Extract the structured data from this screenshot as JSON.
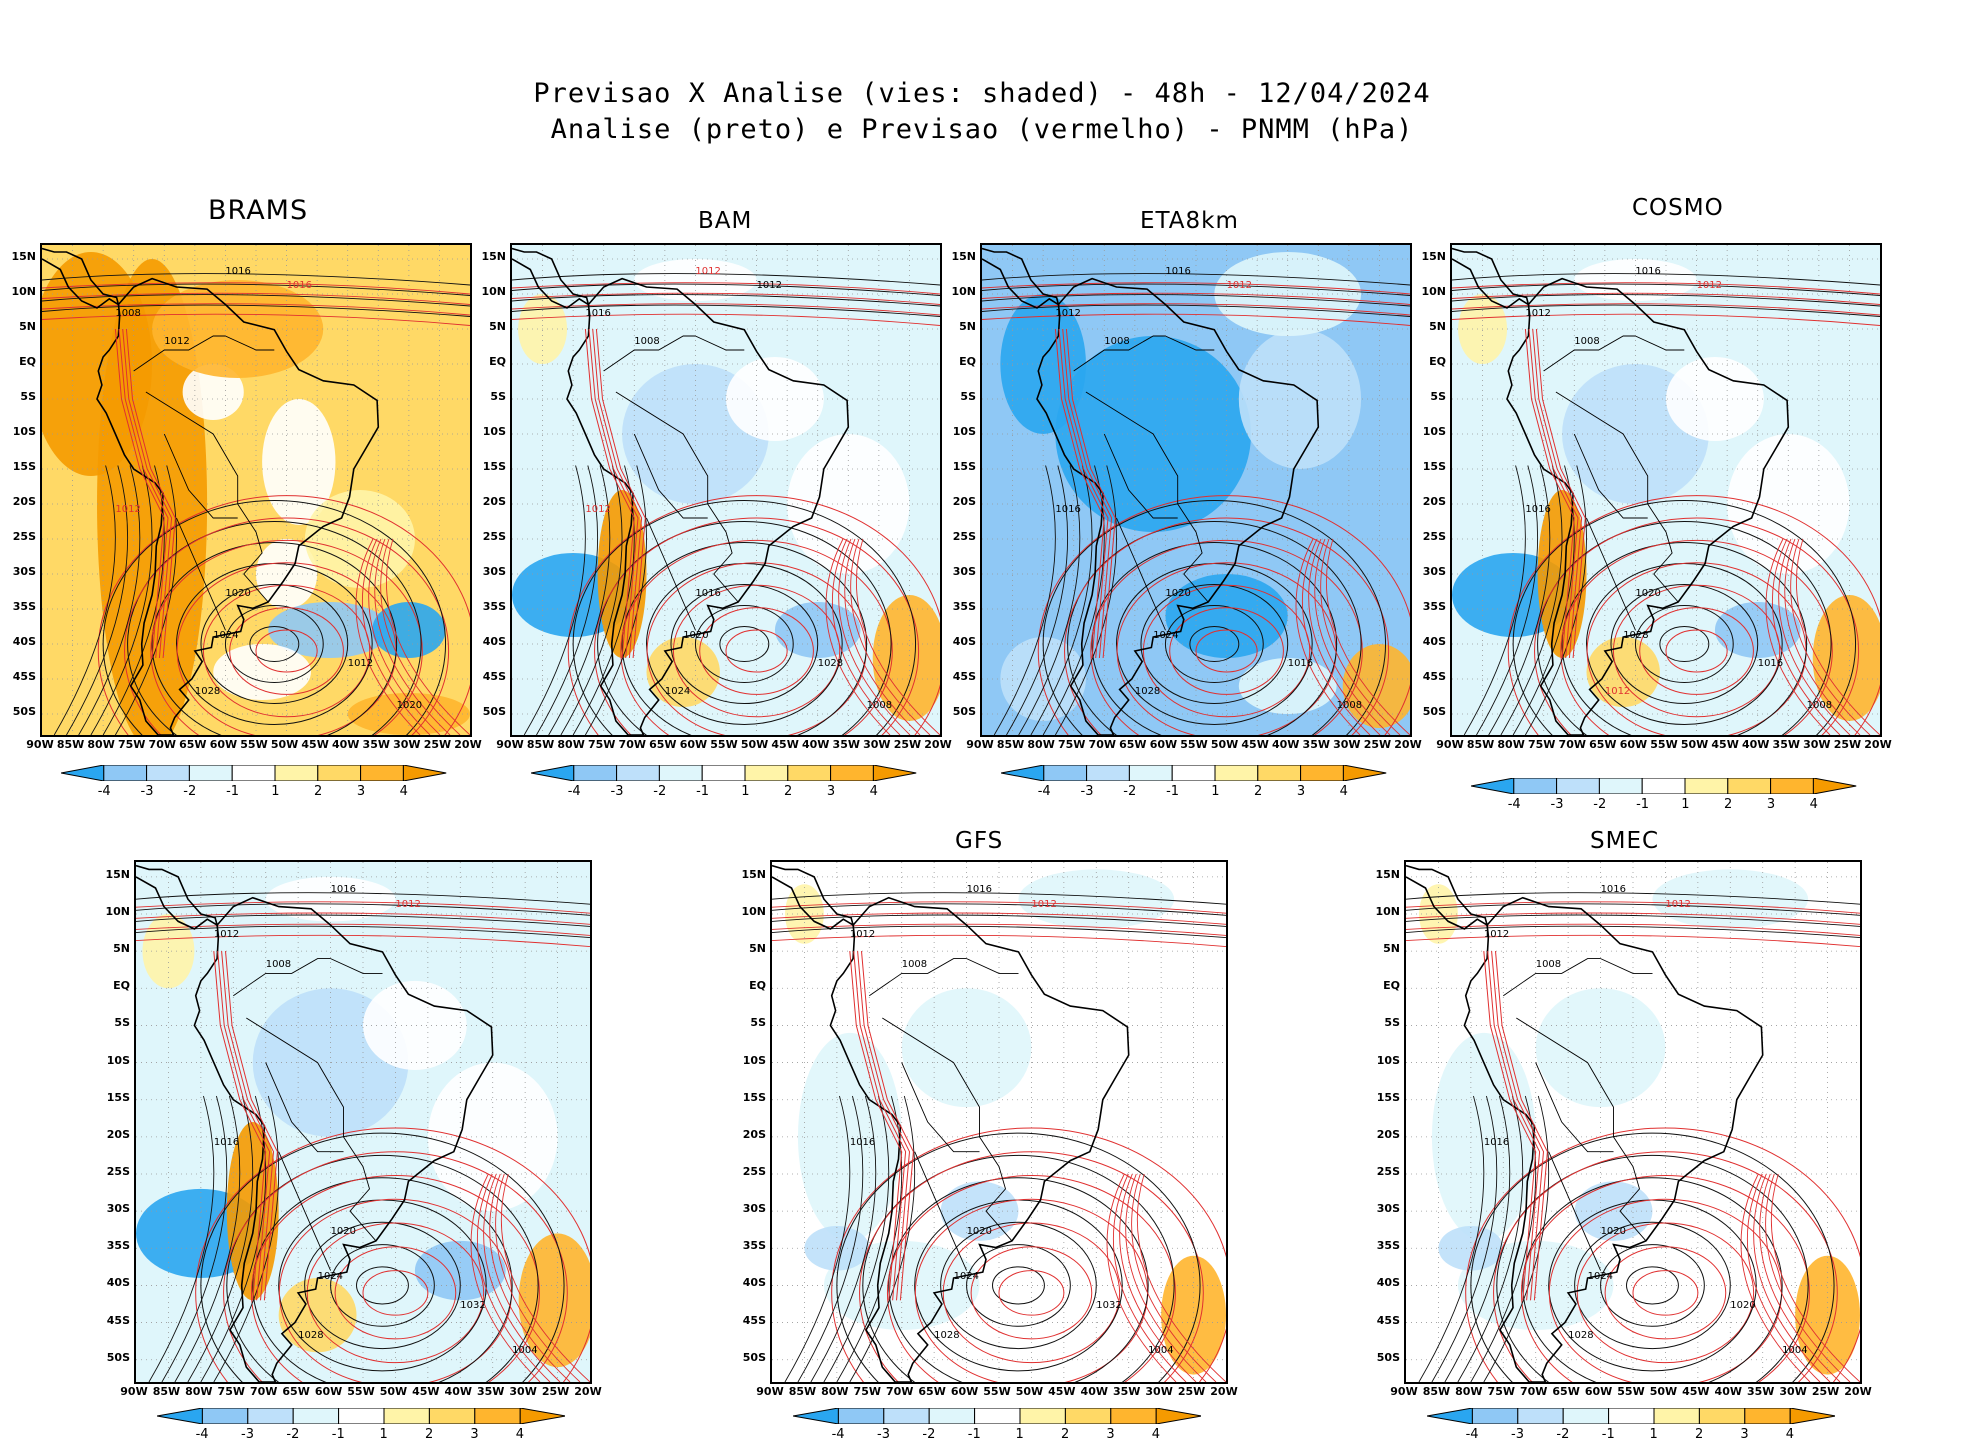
{
  "header": {
    "line1": "Previsao X Analise (vies: shaded) - 48h - 12/04/2024",
    "line2": "Analise (preto) e Previsao (vermelho) - PNMM (hPa)"
  },
  "lat_labels": [
    "15N",
    "10N",
    "5N",
    "EQ",
    "5S",
    "10S",
    "15S",
    "20S",
    "25S",
    "30S",
    "35S",
    "40S",
    "45S",
    "50S"
  ],
  "lon_labels": [
    "90W",
    "85W",
    "80W",
    "75W",
    "70W",
    "65W",
    "60W",
    "55W",
    "50W",
    "45W",
    "40W",
    "35W",
    "30W",
    "25W",
    "20W"
  ],
  "colorbar": {
    "labels": [
      "-4",
      "-3",
      "-2",
      "-1",
      "1",
      "2",
      "3",
      "4"
    ],
    "colors": [
      "#2aa6f0",
      "#8fc8f5",
      "#bee0fa",
      "#dff6fb",
      "#ffffff",
      "#fff4a8",
      "#ffd966",
      "#ffb52e",
      "#f59a00"
    ]
  },
  "panels": [
    {
      "name": "BRAMS",
      "bias": "warm",
      "labels": [
        {
          "t": "1016",
          "c": "k"
        },
        {
          "t": "1008",
          "c": "k"
        },
        {
          "t": "1012",
          "c": "k"
        },
        {
          "t": "1016",
          "c": "r"
        },
        {
          "t": "1012",
          "c": "r"
        },
        {
          "t": "1020",
          "c": "k"
        },
        {
          "t": "1024",
          "c": "k"
        },
        {
          "t": "1028",
          "c": "k"
        },
        {
          "t": "1012",
          "c": "k"
        },
        {
          "t": "1020",
          "c": "k"
        }
      ]
    },
    {
      "name": "BAM",
      "bias": "cool",
      "labels": [
        {
          "t": "1012",
          "c": "r"
        },
        {
          "t": "1016",
          "c": "k"
        },
        {
          "t": "1008",
          "c": "k"
        },
        {
          "t": "1012",
          "c": "k"
        },
        {
          "t": "1012",
          "c": "r"
        },
        {
          "t": "1016",
          "c": "k"
        },
        {
          "t": "1020",
          "c": "k"
        },
        {
          "t": "1024",
          "c": "k"
        },
        {
          "t": "1028",
          "c": "k"
        },
        {
          "t": "1008",
          "c": "k"
        }
      ]
    },
    {
      "name": "ETA8km",
      "bias": "cold",
      "labels": [
        {
          "t": "1016",
          "c": "k"
        },
        {
          "t": "1012",
          "c": "k"
        },
        {
          "t": "1008",
          "c": "k"
        },
        {
          "t": "1012",
          "c": "r"
        },
        {
          "t": "1016",
          "c": "k"
        },
        {
          "t": "1020",
          "c": "k"
        },
        {
          "t": "1024",
          "c": "k"
        },
        {
          "t": "1028",
          "c": "k"
        },
        {
          "t": "1016",
          "c": "k"
        },
        {
          "t": "1008",
          "c": "k"
        }
      ]
    },
    {
      "name": "COSMO",
      "bias": "cool",
      "labels": [
        {
          "t": "1016",
          "c": "k"
        },
        {
          "t": "1012",
          "c": "k"
        },
        {
          "t": "1008",
          "c": "k"
        },
        {
          "t": "1012",
          "c": "r"
        },
        {
          "t": "1016",
          "c": "k"
        },
        {
          "t": "1020",
          "c": "k"
        },
        {
          "t": "1028",
          "c": "k"
        },
        {
          "t": "1012",
          "c": "r"
        },
        {
          "t": "1016",
          "c": "k"
        },
        {
          "t": "1008",
          "c": "k"
        }
      ]
    },
    {
      "name": "",
      "bias": "cool",
      "labels": [
        {
          "t": "1016",
          "c": "k"
        },
        {
          "t": "1012",
          "c": "k"
        },
        {
          "t": "1008",
          "c": "k"
        },
        {
          "t": "1012",
          "c": "r"
        },
        {
          "t": "1016",
          "c": "k"
        },
        {
          "t": "1020",
          "c": "k"
        },
        {
          "t": "1024",
          "c": "k"
        },
        {
          "t": "1028",
          "c": "k"
        },
        {
          "t": "1032",
          "c": "k"
        },
        {
          "t": "1004",
          "c": "k"
        }
      ]
    },
    {
      "name": "GFS",
      "bias": "mild",
      "labels": [
        {
          "t": "1016",
          "c": "k"
        },
        {
          "t": "1012",
          "c": "k"
        },
        {
          "t": "1008",
          "c": "k"
        },
        {
          "t": "1012",
          "c": "r"
        },
        {
          "t": "1016",
          "c": "k"
        },
        {
          "t": "1020",
          "c": "k"
        },
        {
          "t": "1024",
          "c": "k"
        },
        {
          "t": "1028",
          "c": "k"
        },
        {
          "t": "1032",
          "c": "k"
        },
        {
          "t": "1004",
          "c": "k"
        }
      ]
    },
    {
      "name": "SMEC",
      "bias": "mild",
      "labels": [
        {
          "t": "1016",
          "c": "k"
        },
        {
          "t": "1012",
          "c": "k"
        },
        {
          "t": "1008",
          "c": "k"
        },
        {
          "t": "1012",
          "c": "r"
        },
        {
          "t": "1016",
          "c": "k"
        },
        {
          "t": "1020",
          "c": "k"
        },
        {
          "t": "1024",
          "c": "k"
        },
        {
          "t": "1028",
          "c": "k"
        },
        {
          "t": "1020",
          "c": "k"
        },
        {
          "t": "1004",
          "c": "k"
        }
      ]
    }
  ]
}
